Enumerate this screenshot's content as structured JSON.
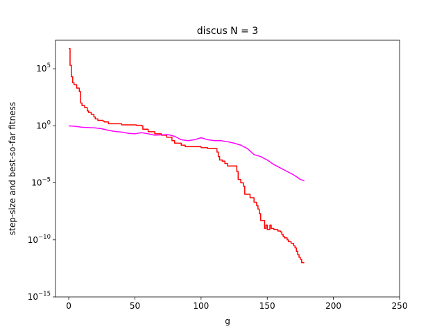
{
  "chart_data": {
    "type": "line",
    "title": "discus N = 3",
    "xlabel": "g",
    "ylabel": "step-size and best-so-far fitness",
    "xlim": [
      -10,
      250
    ],
    "ylim": [
      1e-15,
      31600000.0
    ],
    "yscale": "log",
    "grid": false,
    "x_ticks": [
      {
        "value": 0,
        "label": "0"
      },
      {
        "value": 50,
        "label": "50"
      },
      {
        "value": 100,
        "label": "100"
      },
      {
        "value": 150,
        "label": "150"
      },
      {
        "value": 200,
        "label": "200"
      },
      {
        "value": 250,
        "label": "250"
      }
    ],
    "y_ticks": [
      {
        "value": 100000.0,
        "base": "10",
        "exp": "5"
      },
      {
        "value": 1,
        "base": "10",
        "exp": "0"
      },
      {
        "value": 1e-05,
        "base": "10",
        "exp": "−5"
      },
      {
        "value": 1e-10,
        "base": "10",
        "exp": "−10"
      },
      {
        "value": 1e-15,
        "base": "10",
        "exp": "−15"
      }
    ],
    "series": [
      {
        "color": "#ff0000",
        "style": "step",
        "x": [
          0,
          1,
          2,
          3,
          4,
          6,
          8,
          9,
          10,
          12,
          14,
          15,
          17,
          19,
          20,
          22,
          26,
          27,
          30,
          40,
          50,
          51,
          55,
          56,
          60,
          65,
          70,
          74,
          78,
          80,
          85,
          88,
          95,
          100,
          105,
          110,
          112,
          113,
          114,
          116,
          118,
          120,
          125,
          127,
          128,
          130,
          132,
          133,
          136,
          137,
          140,
          142,
          143,
          144,
          145,
          148,
          149,
          150,
          152,
          153,
          155,
          158,
          159,
          160,
          161,
          162,
          163,
          165,
          166,
          168,
          170,
          171,
          172,
          173,
          174,
          175,
          176,
          177,
          178
        ],
        "y": [
          6000000.0,
          200000.0,
          20000.0,
          6000,
          4000,
          2000,
          1000,
          100,
          60,
          40,
          20,
          15,
          10,
          6,
          4,
          3,
          2.5,
          2.2,
          1.5,
          1.2,
          1.2,
          1.1,
          1.0,
          0.5,
          0.3,
          0.2,
          0.15,
          0.1,
          0.05,
          0.03,
          0.02,
          0.015,
          0.015,
          0.012,
          0.01,
          0.01,
          0.005,
          0.002,
          0.001,
          0.0008,
          0.0005,
          0.0003,
          0.0003,
          0.0001,
          2e-05,
          1e-05,
          5e-06,
          1e-06,
          1e-06,
          5e-07,
          2e-07,
          1e-07,
          5e-08,
          2e-08,
          5e-09,
          1e-09,
          2e-09,
          8e-10,
          2e-09,
          1e-09,
          8e-10,
          6e-10,
          6e-10,
          5e-10,
          3e-10,
          2e-10,
          1.5e-10,
          1e-10,
          7e-11,
          5e-11,
          3e-11,
          2e-11,
          1e-11,
          5e-12,
          3e-12,
          2e-12,
          1e-12,
          1e-12,
          1e-12
        ]
      },
      {
        "color": "#ff00ff",
        "style": "line",
        "x": [
          0,
          5,
          10,
          15,
          20,
          25,
          30,
          35,
          40,
          45,
          50,
          55,
          60,
          65,
          70,
          75,
          80,
          85,
          90,
          95,
          100,
          105,
          110,
          115,
          120,
          125,
          130,
          135,
          140,
          145,
          150,
          155,
          160,
          165,
          170,
          175,
          178
        ],
        "y": [
          1.0,
          0.9,
          0.75,
          0.7,
          0.65,
          0.55,
          0.4,
          0.32,
          0.28,
          0.22,
          0.2,
          0.25,
          0.2,
          0.15,
          0.16,
          0.17,
          0.12,
          0.06,
          0.05,
          0.06,
          0.09,
          0.06,
          0.05,
          0.05,
          0.04,
          0.03,
          0.02,
          0.01,
          0.003,
          0.002,
          0.001,
          0.0004,
          0.0002,
          0.0001,
          5e-05,
          2e-05,
          1.5e-05
        ]
      }
    ]
  }
}
